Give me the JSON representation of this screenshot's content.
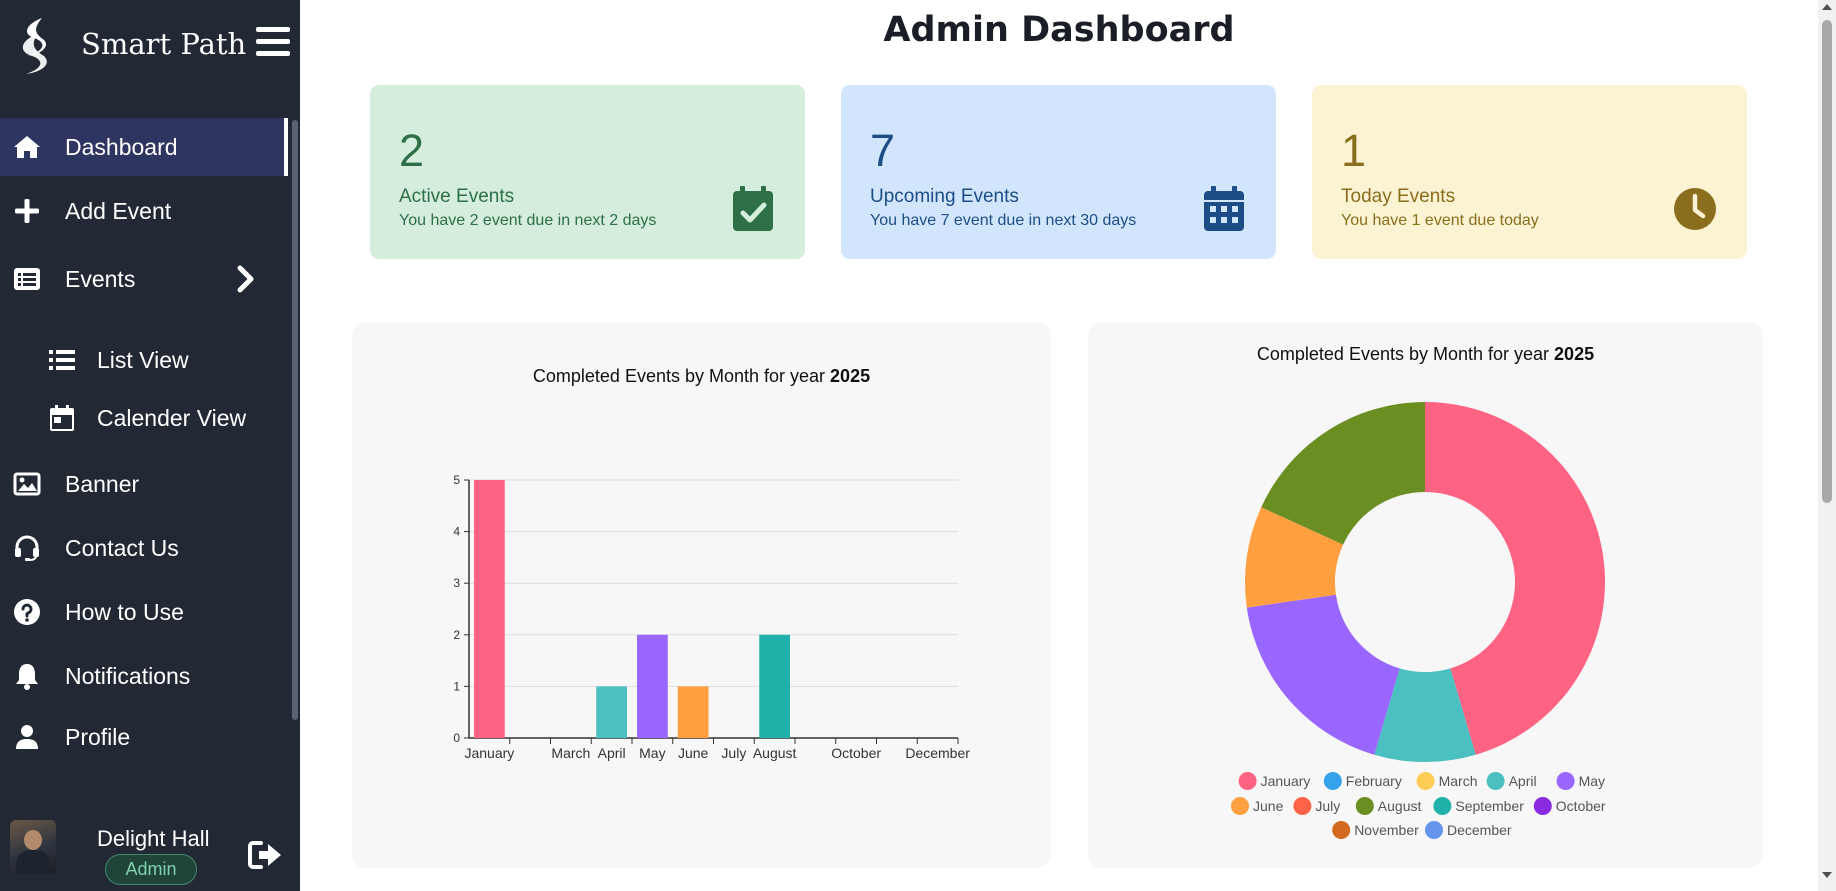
{
  "sidebar": {
    "brand_name": "Smart Path",
    "items": [
      {
        "label": "Dashboard",
        "icon": "home-icon"
      },
      {
        "label": "Add Event",
        "icon": "plus-icon"
      },
      {
        "label": "Events",
        "icon": "list-alt-icon"
      },
      {
        "label": "List View",
        "icon": "list-icon"
      },
      {
        "label": "Calender View",
        "icon": "calendar-icon"
      },
      {
        "label": "Banner",
        "icon": "image-icon"
      },
      {
        "label": "Contact Us",
        "icon": "headset-icon"
      },
      {
        "label": "How to Use",
        "icon": "question-circle-icon"
      },
      {
        "label": "Notifications",
        "icon": "bell-icon"
      },
      {
        "label": "Profile",
        "icon": "user-icon"
      }
    ],
    "user": {
      "name": "Delight Hall",
      "role": "Admin"
    }
  },
  "main": {
    "title": "Admin Dashboard",
    "cards": [
      {
        "number": "2",
        "title": "Active Events",
        "description": "You have 2 event due in next 2 days",
        "icon": "calendar-check-icon",
        "color": "#2d7047",
        "bg": "#d5eddd"
      },
      {
        "number": "7",
        "title": "Upcoming Events",
        "description": "You have 7 event due in next 30 days",
        "icon": "calendar-days-icon",
        "color": "#1d4d86",
        "bg": "#d1e6fc"
      },
      {
        "number": "1",
        "title": "Today Events",
        "description": "You have 1 event due today",
        "icon": "clock-icon",
        "color": "#8a6d1d",
        "bg": "#fcf3d2"
      }
    ]
  },
  "chart_data": [
    {
      "type": "bar",
      "title_prefix": "Completed Events by Month for year",
      "title_year": "2025",
      "categories": [
        "January",
        "February",
        "March",
        "April",
        "May",
        "June",
        "July",
        "August",
        "September",
        "October",
        "November",
        "December"
      ],
      "shown_tick_labels": [
        "January",
        "March",
        "April",
        "May",
        "June",
        "July",
        "August",
        "October",
        "December"
      ],
      "values": [
        5,
        0,
        0,
        1,
        2,
        1,
        0,
        2,
        0,
        0,
        0,
        0
      ],
      "colors": [
        "#ff6384",
        "#36a2eb",
        "#ffcd56",
        "#4bc0c0",
        "#9966ff",
        "#ff9f40",
        "#ff6347",
        "#20b2aa",
        "#20b2aa",
        "#8a2be2",
        "#d2691e",
        "#6495ed"
      ],
      "ylim": [
        0,
        5
      ],
      "yticks": [
        0,
        1,
        2,
        3,
        4,
        5
      ],
      "grid": true,
      "legend": "none"
    },
    {
      "type": "pie",
      "donut": true,
      "title_prefix": "Completed Events by Month for year",
      "title_year": "2025",
      "categories": [
        "January",
        "February",
        "March",
        "April",
        "May",
        "June",
        "July",
        "August",
        "September",
        "October",
        "November",
        "December"
      ],
      "values": [
        5,
        0,
        0,
        1,
        2,
        1,
        0,
        2,
        0,
        0,
        0,
        0
      ],
      "colors": [
        "#ff6384",
        "#36a2eb",
        "#ffcd56",
        "#4bc0c0",
        "#9966ff",
        "#ff9f40",
        "#ff6347",
        "#6b8e23",
        "#20b2aa",
        "#8a2be2",
        "#d2691e",
        "#6495ed"
      ],
      "legend": "bottom"
    }
  ]
}
